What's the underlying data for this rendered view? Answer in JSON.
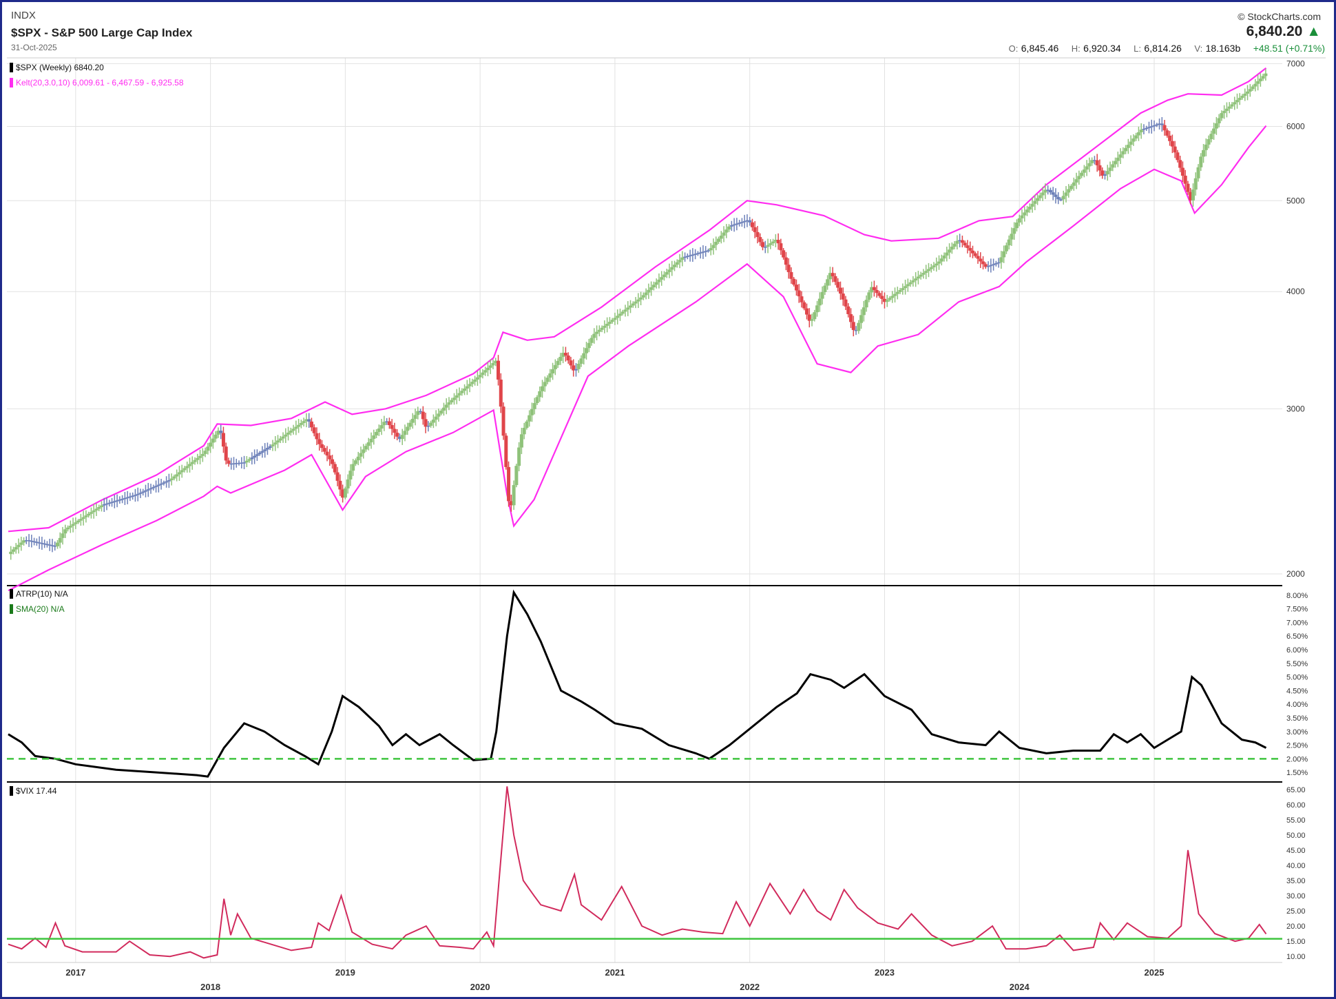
{
  "header": {
    "exchange": "INDX",
    "title": "$SPX - S&P 500 Large Cap Index",
    "date": "31-Oct-2025",
    "brand": "© StockCharts.com",
    "last_price": "6,840.20",
    "ohlc": {
      "open_label": "O:",
      "open": "6,845.46",
      "high_label": "H:",
      "high": "6,920.34",
      "low_label": "L:",
      "low": "6,814.26",
      "vol_label": "V:",
      "vol": "18.163b",
      "change": "+48.51 (+0.71%)"
    }
  },
  "colors": {
    "frame": "#1f2a8a",
    "kelt": "#ff2cf0",
    "up": "#8fc27a",
    "down": "#e0454a",
    "neutral": "#6b7fb8",
    "atrp": "#000000",
    "sma": "#3ec43e",
    "vix": "#d12a5c",
    "vix_ref": "#3ec43e",
    "grid": "#e2e2e2"
  },
  "chart_data": [
    {
      "type": "candlestick",
      "legend": [
        "$SPX (Weekly) 6840.20",
        "Kelt(20,3.0,10) 6,009.61 - 6,467.59 - 6,925.58"
      ],
      "y_scale": "log",
      "ylim": [
        1950,
        7100
      ],
      "yticks": [
        2000,
        3000,
        4000,
        5000,
        6000,
        7000
      ],
      "x_ticks": [
        "2017",
        "2018",
        "2019",
        "2020",
        "2021",
        "2022",
        "2023",
        "2024",
        "2025"
      ],
      "xlim": [
        2016.49,
        2025.95
      ],
      "close_series": [
        [
          2016.5,
          2100
        ],
        [
          2016.62,
          2175
        ],
        [
          2016.85,
          2140
        ],
        [
          2016.92,
          2230
        ],
        [
          2017.2,
          2370
        ],
        [
          2017.45,
          2430
        ],
        [
          2017.7,
          2520
        ],
        [
          2017.95,
          2690
        ],
        [
          2018.07,
          2860
        ],
        [
          2018.12,
          2620
        ],
        [
          2018.25,
          2630
        ],
        [
          2018.45,
          2740
        ],
        [
          2018.72,
          2930
        ],
        [
          2018.8,
          2760
        ],
        [
          2018.9,
          2630
        ],
        [
          2018.98,
          2410
        ],
        [
          2019.05,
          2610
        ],
        [
          2019.3,
          2920
        ],
        [
          2019.4,
          2780
        ],
        [
          2019.55,
          3000
        ],
        [
          2019.6,
          2860
        ],
        [
          2019.75,
          3030
        ],
        [
          2019.98,
          3240
        ],
        [
          2020.12,
          3380
        ],
        [
          2020.16,
          2950
        ],
        [
          2020.22,
          2300
        ],
        [
          2020.3,
          2800
        ],
        [
          2020.45,
          3150
        ],
        [
          2020.62,
          3450
        ],
        [
          2020.7,
          3280
        ],
        [
          2020.84,
          3600
        ],
        [
          2021.0,
          3750
        ],
        [
          2021.2,
          3950
        ],
        [
          2021.5,
          4350
        ],
        [
          2021.7,
          4430
        ],
        [
          2021.85,
          4700
        ],
        [
          2021.99,
          4770
        ],
        [
          2022.1,
          4450
        ],
        [
          2022.2,
          4550
        ],
        [
          2022.3,
          4150
        ],
        [
          2022.45,
          3700
        ],
        [
          2022.6,
          4200
        ],
        [
          2022.7,
          3900
        ],
        [
          2022.78,
          3600
        ],
        [
          2022.9,
          4050
        ],
        [
          2023.0,
          3900
        ],
        [
          2023.2,
          4100
        ],
        [
          2023.4,
          4300
        ],
        [
          2023.55,
          4550
        ],
        [
          2023.75,
          4250
        ],
        [
          2023.85,
          4300
        ],
        [
          2023.99,
          4770
        ],
        [
          2024.2,
          5150
        ],
        [
          2024.3,
          5000
        ],
        [
          2024.55,
          5550
        ],
        [
          2024.62,
          5300
        ],
        [
          2024.9,
          5950
        ],
        [
          2025.05,
          6050
        ],
        [
          2025.15,
          5650
        ],
        [
          2025.27,
          5000
        ],
        [
          2025.35,
          5600
        ],
        [
          2025.5,
          6200
        ],
        [
          2025.7,
          6550
        ],
        [
          2025.83,
          6840
        ]
      ],
      "kelt_upper": [
        [
          2016.5,
          2220
        ],
        [
          2016.8,
          2240
        ],
        [
          2017.2,
          2400
        ],
        [
          2017.6,
          2550
        ],
        [
          2017.95,
          2740
        ],
        [
          2018.05,
          2890
        ],
        [
          2018.3,
          2880
        ],
        [
          2018.6,
          2930
        ],
        [
          2018.85,
          3050
        ],
        [
          2019.05,
          2960
        ],
        [
          2019.3,
          3000
        ],
        [
          2019.6,
          3100
        ],
        [
          2019.95,
          3270
        ],
        [
          2020.1,
          3400
        ],
        [
          2020.17,
          3620
        ],
        [
          2020.35,
          3550
        ],
        [
          2020.55,
          3580
        ],
        [
          2020.9,
          3850
        ],
        [
          2021.3,
          4250
        ],
        [
          2021.7,
          4650
        ],
        [
          2021.98,
          5000
        ],
        [
          2022.2,
          4950
        ],
        [
          2022.55,
          4820
        ],
        [
          2022.85,
          4600
        ],
        [
          2023.05,
          4530
        ],
        [
          2023.4,
          4560
        ],
        [
          2023.7,
          4760
        ],
        [
          2023.95,
          4810
        ],
        [
          2024.2,
          5200
        ],
        [
          2024.6,
          5750
        ],
        [
          2024.9,
          6200
        ],
        [
          2025.1,
          6400
        ],
        [
          2025.25,
          6500
        ],
        [
          2025.5,
          6480
        ],
        [
          2025.7,
          6700
        ],
        [
          2025.83,
          6925
        ]
      ],
      "kelt_lower": [
        [
          2016.5,
          1920
        ],
        [
          2016.8,
          2020
        ],
        [
          2017.2,
          2150
        ],
        [
          2017.6,
          2280
        ],
        [
          2017.95,
          2420
        ],
        [
          2018.05,
          2480
        ],
        [
          2018.15,
          2440
        ],
        [
          2018.55,
          2580
        ],
        [
          2018.75,
          2680
        ],
        [
          2018.98,
          2340
        ],
        [
          2019.15,
          2540
        ],
        [
          2019.45,
          2700
        ],
        [
          2019.8,
          2830
        ],
        [
          2020.1,
          2990
        ],
        [
          2020.2,
          2430
        ],
        [
          2020.25,
          2250
        ],
        [
          2020.4,
          2400
        ],
        [
          2020.8,
          3250
        ],
        [
          2021.1,
          3500
        ],
        [
          2021.6,
          3900
        ],
        [
          2021.98,
          4280
        ],
        [
          2022.25,
          3950
        ],
        [
          2022.5,
          3350
        ],
        [
          2022.75,
          3280
        ],
        [
          2022.95,
          3500
        ],
        [
          2023.25,
          3600
        ],
        [
          2023.55,
          3900
        ],
        [
          2023.85,
          4050
        ],
        [
          2024.05,
          4300
        ],
        [
          2024.4,
          4700
        ],
        [
          2024.75,
          5150
        ],
        [
          2025.0,
          5400
        ],
        [
          2025.2,
          5250
        ],
        [
          2025.3,
          4850
        ],
        [
          2025.5,
          5200
        ],
        [
          2025.7,
          5700
        ],
        [
          2025.83,
          6009
        ]
      ]
    },
    {
      "type": "line",
      "legend": [
        "ATRP(10) N/A",
        "SMA(20) N/A"
      ],
      "ylim": [
        1.2,
        8.3
      ],
      "yticks": [
        1.5,
        2.0,
        2.5,
        3.0,
        3.5,
        4.0,
        4.5,
        5.0,
        5.5,
        6.0,
        6.5,
        7.0,
        7.5,
        8.0
      ],
      "ytick_labels": [
        "1.50%",
        "2.00%",
        "2.50%",
        "3.00%",
        "3.50%",
        "4.00%",
        "4.50%",
        "5.00%",
        "5.50%",
        "6.00%",
        "6.50%",
        "7.00%",
        "7.50%",
        "8.00%"
      ],
      "reference_line": 2.0,
      "series": [
        [
          2016.5,
          2.9
        ],
        [
          2016.6,
          2.6
        ],
        [
          2016.7,
          2.1
        ],
        [
          2016.85,
          2.0
        ],
        [
          2017.0,
          1.8
        ],
        [
          2017.3,
          1.6
        ],
        [
          2017.6,
          1.5
        ],
        [
          2017.9,
          1.4
        ],
        [
          2017.98,
          1.35
        ],
        [
          2018.1,
          2.4
        ],
        [
          2018.25,
          3.3
        ],
        [
          2018.4,
          3.0
        ],
        [
          2018.55,
          2.5
        ],
        [
          2018.7,
          2.1
        ],
        [
          2018.8,
          1.8
        ],
        [
          2018.9,
          3.0
        ],
        [
          2018.98,
          4.3
        ],
        [
          2019.1,
          3.9
        ],
        [
          2019.25,
          3.2
        ],
        [
          2019.35,
          2.5
        ],
        [
          2019.45,
          2.9
        ],
        [
          2019.55,
          2.5
        ],
        [
          2019.7,
          2.9
        ],
        [
          2019.8,
          2.5
        ],
        [
          2019.95,
          1.95
        ],
        [
          2020.08,
          2.0
        ],
        [
          2020.12,
          3.0
        ],
        [
          2020.2,
          6.5
        ],
        [
          2020.25,
          8.1
        ],
        [
          2020.35,
          7.3
        ],
        [
          2020.45,
          6.3
        ],
        [
          2020.6,
          4.5
        ],
        [
          2020.75,
          4.1
        ],
        [
          2020.85,
          3.8
        ],
        [
          2021.0,
          3.3
        ],
        [
          2021.2,
          3.1
        ],
        [
          2021.4,
          2.5
        ],
        [
          2021.6,
          2.2
        ],
        [
          2021.7,
          2.0
        ],
        [
          2021.85,
          2.5
        ],
        [
          2022.0,
          3.1
        ],
        [
          2022.2,
          3.9
        ],
        [
          2022.35,
          4.4
        ],
        [
          2022.45,
          5.1
        ],
        [
          2022.6,
          4.9
        ],
        [
          2022.7,
          4.6
        ],
        [
          2022.85,
          5.1
        ],
        [
          2023.0,
          4.3
        ],
        [
          2023.2,
          3.8
        ],
        [
          2023.35,
          2.9
        ],
        [
          2023.55,
          2.6
        ],
        [
          2023.75,
          2.5
        ],
        [
          2023.85,
          3.0
        ],
        [
          2024.0,
          2.4
        ],
        [
          2024.2,
          2.2
        ],
        [
          2024.4,
          2.3
        ],
        [
          2024.6,
          2.3
        ],
        [
          2024.7,
          2.9
        ],
        [
          2024.8,
          2.6
        ],
        [
          2024.9,
          2.9
        ],
        [
          2025.0,
          2.4
        ],
        [
          2025.1,
          2.7
        ],
        [
          2025.2,
          3.0
        ],
        [
          2025.28,
          5.0
        ],
        [
          2025.35,
          4.7
        ],
        [
          2025.5,
          3.3
        ],
        [
          2025.65,
          2.7
        ],
        [
          2025.75,
          2.6
        ],
        [
          2025.83,
          2.4
        ]
      ]
    },
    {
      "type": "line",
      "legend": [
        "$VIX 17.44"
      ],
      "ylim": [
        8,
        67
      ],
      "yticks": [
        10,
        15,
        20,
        25,
        30,
        35,
        40,
        45,
        50,
        55,
        60,
        65
      ],
      "ytick_labels": [
        "10.00",
        "15.00",
        "20.00",
        "25.00",
        "30.00",
        "35.00",
        "40.00",
        "45.00",
        "50.00",
        "55.00",
        "60.00",
        "65.00"
      ],
      "reference_line": 15.8,
      "series": [
        [
          2016.5,
          14.0
        ],
        [
          2016.6,
          12.5
        ],
        [
          2016.7,
          16.0
        ],
        [
          2016.78,
          13.0
        ],
        [
          2016.85,
          21.0
        ],
        [
          2016.92,
          13.5
        ],
        [
          2017.05,
          11.5
        ],
        [
          2017.3,
          11.5
        ],
        [
          2017.4,
          15.0
        ],
        [
          2017.55,
          10.5
        ],
        [
          2017.7,
          10.0
        ],
        [
          2017.85,
          11.5
        ],
        [
          2017.95,
          9.5
        ],
        [
          2018.05,
          10.5
        ],
        [
          2018.1,
          29.0
        ],
        [
          2018.15,
          17.0
        ],
        [
          2018.2,
          24.0
        ],
        [
          2018.3,
          16.0
        ],
        [
          2018.45,
          14.0
        ],
        [
          2018.6,
          12.0
        ],
        [
          2018.75,
          13.0
        ],
        [
          2018.8,
          21.0
        ],
        [
          2018.88,
          18.5
        ],
        [
          2018.97,
          30.0
        ],
        [
          2019.05,
          18.0
        ],
        [
          2019.2,
          14.0
        ],
        [
          2019.35,
          12.5
        ],
        [
          2019.45,
          17.0
        ],
        [
          2019.6,
          20.0
        ],
        [
          2019.7,
          13.5
        ],
        [
          2019.85,
          13.0
        ],
        [
          2019.95,
          12.5
        ],
        [
          2020.05,
          18.0
        ],
        [
          2020.1,
          13.5
        ],
        [
          2020.15,
          40.0
        ],
        [
          2020.2,
          66.0
        ],
        [
          2020.25,
          50.0
        ],
        [
          2020.32,
          35.0
        ],
        [
          2020.4,
          30.0
        ],
        [
          2020.45,
          27.0
        ],
        [
          2020.6,
          25.0
        ],
        [
          2020.7,
          37.0
        ],
        [
          2020.75,
          27.0
        ],
        [
          2020.9,
          22.0
        ],
        [
          2021.05,
          33.0
        ],
        [
          2021.2,
          20.0
        ],
        [
          2021.35,
          17.0
        ],
        [
          2021.5,
          19.0
        ],
        [
          2021.65,
          18.0
        ],
        [
          2021.8,
          17.5
        ],
        [
          2021.9,
          28.0
        ],
        [
          2022.0,
          20.0
        ],
        [
          2022.15,
          34.0
        ],
        [
          2022.3,
          24.0
        ],
        [
          2022.4,
          32.0
        ],
        [
          2022.5,
          25.0
        ],
        [
          2022.6,
          22.0
        ],
        [
          2022.7,
          32.0
        ],
        [
          2022.8,
          26.0
        ],
        [
          2022.95,
          21.0
        ],
        [
          2023.1,
          19.0
        ],
        [
          2023.2,
          24.0
        ],
        [
          2023.35,
          17.0
        ],
        [
          2023.5,
          13.5
        ],
        [
          2023.65,
          15.0
        ],
        [
          2023.8,
          20.0
        ],
        [
          2023.9,
          12.5
        ],
        [
          2024.05,
          12.5
        ],
        [
          2024.2,
          13.5
        ],
        [
          2024.3,
          17.0
        ],
        [
          2024.4,
          12.0
        ],
        [
          2024.55,
          13.0
        ],
        [
          2024.6,
          21.0
        ],
        [
          2024.7,
          15.5
        ],
        [
          2024.8,
          21.0
        ],
        [
          2024.95,
          16.5
        ],
        [
          2025.1,
          16.0
        ],
        [
          2025.2,
          20.0
        ],
        [
          2025.25,
          45.0
        ],
        [
          2025.33,
          24.0
        ],
        [
          2025.45,
          17.5
        ],
        [
          2025.6,
          15.0
        ],
        [
          2025.7,
          16.0
        ],
        [
          2025.78,
          20.5
        ],
        [
          2025.83,
          17.4
        ]
      ]
    }
  ]
}
